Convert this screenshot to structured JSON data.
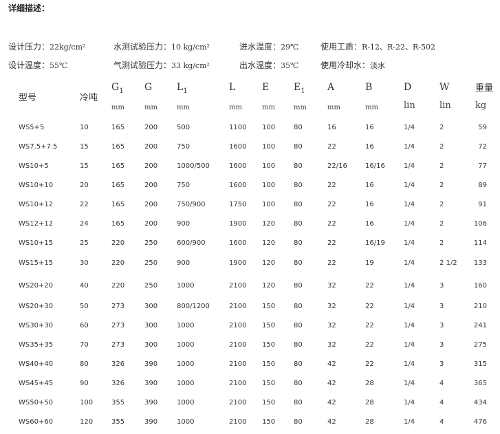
{
  "title": "详细描述：",
  "info": {
    "line1": [
      {
        "label": "设计压力：",
        "value": "22kg/cm²"
      },
      {
        "label": "水测试验压力：",
        "value": "10 kg/cm²"
      },
      {
        "label": "进水温度：",
        "value": "29℃"
      },
      {
        "label": "使用工质：",
        "value": "R-12、R-22、R-502"
      }
    ],
    "line2": [
      {
        "label": "设计温度：",
        "value": "55℃"
      },
      {
        "label": "气测试验压力：",
        "value": "33 kg/cm²"
      },
      {
        "label": "出水温度：",
        "value": "35℃"
      },
      {
        "label": "使用冷却水：",
        "value": "淡水"
      }
    ]
  },
  "table": {
    "headers": [
      {
        "label": "型号",
        "sub": "",
        "unit": ""
      },
      {
        "label": "冷吨",
        "sub": "",
        "unit": ""
      },
      {
        "label": "G",
        "sub": "1",
        "unit": "mm"
      },
      {
        "label": "G",
        "sub": "",
        "unit": "mm"
      },
      {
        "label": "L",
        "sub": "1",
        "unit": "mm"
      },
      {
        "label": "L",
        "sub": "",
        "unit": "mm"
      },
      {
        "label": "E",
        "sub": "",
        "unit": "mm"
      },
      {
        "label": "E",
        "sub": "1",
        "unit": "mm"
      },
      {
        "label": "A",
        "sub": "",
        "unit": "mm"
      },
      {
        "label": "B",
        "sub": "",
        "unit": "mm"
      },
      {
        "label": "D",
        "sub": "",
        "unit": "lin"
      },
      {
        "label": "W",
        "sub": "",
        "unit": "lin"
      },
      {
        "label": "重量",
        "sub": "",
        "unit": "kg"
      }
    ],
    "rows": [
      [
        "WS5+5",
        "10",
        "165",
        "200",
        "500",
        "1100",
        "100",
        "80",
        "16",
        "16",
        "1/4",
        "2",
        "59"
      ],
      [
        "WS7.5+7.5",
        "15",
        "165",
        "200",
        "750",
        "1600",
        "100",
        "80",
        "22",
        "16",
        "1/4",
        "2",
        "72"
      ],
      [
        "WS10+5",
        "15",
        "165",
        "200",
        "1000/500",
        "1600",
        "100",
        "80",
        "22/16",
        "16/16",
        "1/4",
        "2",
        "77"
      ],
      [
        "WS10+10",
        "20",
        "165",
        "200",
        "750",
        "1600",
        "100",
        "80",
        "22",
        "16",
        "1/4",
        "2",
        "89"
      ],
      [
        "WS10+12",
        "22",
        "165",
        "200",
        "750/900",
        "1750",
        "100",
        "80",
        "22",
        "16",
        "1/4",
        "2",
        "91"
      ],
      [
        "WS12+12",
        "24",
        "165",
        "200",
        "900",
        "1900",
        "120",
        "80",
        "22",
        "16",
        "1/4",
        "2",
        "106"
      ],
      [
        "WS10+15",
        "25",
        "220",
        "250",
        "600/900",
        "1600",
        "120",
        "80",
        "22",
        "16/19",
        "1/4",
        "2",
        "114"
      ],
      [
        "WS15+15",
        "30",
        "220",
        "250",
        "900",
        "1900",
        "120",
        "80",
        "22",
        "19",
        "1/4",
        "2 1/2",
        "133"
      ],
      [
        "WS20+20",
        "40",
        "220",
        "250",
        "1000",
        "2100",
        "120",
        "80",
        "32",
        "22",
        "1/4",
        "3",
        "160"
      ],
      [
        "WS20+30",
        "50",
        "273",
        "300",
        "800/1200",
        "2100",
        "150",
        "80",
        "32",
        "22",
        "1/4",
        "3",
        "210"
      ],
      [
        "WS30+30",
        "60",
        "273",
        "300",
        "1000",
        "2100",
        "150",
        "80",
        "32",
        "22",
        "1/4",
        "3",
        "241"
      ],
      [
        "WS35+35",
        "70",
        "273",
        "300",
        "1000",
        "2100",
        "150",
        "80",
        "32",
        "22",
        "1/4",
        "3",
        "275"
      ],
      [
        "WS40+40",
        "80",
        "326",
        "390",
        "1000",
        "2100",
        "150",
        "80",
        "42",
        "22",
        "1/4",
        "3",
        "315"
      ],
      [
        "WS45+45",
        "90",
        "326",
        "390",
        "1000",
        "2100",
        "150",
        "80",
        "42",
        "28",
        "1/4",
        "4",
        "365"
      ],
      [
        "WS50+50",
        "100",
        "355",
        "390",
        "1000",
        "2100",
        "150",
        "80",
        "42",
        "28",
        "1/4",
        "4",
        "434"
      ],
      [
        "WS60+60",
        "120",
        "355",
        "390",
        "1000",
        "2100",
        "150",
        "80",
        "42",
        "28",
        "1/4",
        "4",
        "476"
      ]
    ]
  }
}
